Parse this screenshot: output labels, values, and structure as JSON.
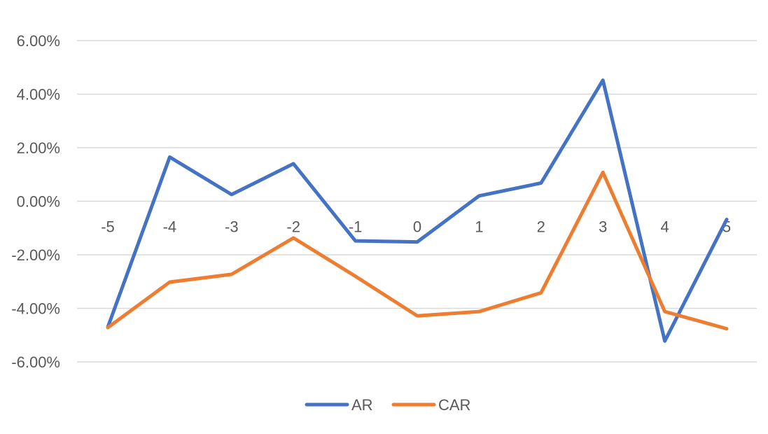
{
  "chart_data": {
    "type": "line",
    "categories": [
      "-5",
      "-4",
      "-3",
      "-2",
      "-1",
      "0",
      "1",
      "2",
      "3",
      "4",
      "5"
    ],
    "series": [
      {
        "name": "AR",
        "color": "#4472C4",
        "values": [
          -4.7,
          1.65,
          0.25,
          1.4,
          -1.48,
          -1.52,
          0.2,
          0.68,
          4.52,
          -5.22,
          -0.68
        ]
      },
      {
        "name": "CAR",
        "color": "#ED7D31",
        "values": [
          -4.72,
          -3.02,
          -2.73,
          -1.37,
          -2.8,
          -4.28,
          -4.12,
          -3.42,
          1.08,
          -4.12,
          -4.76
        ]
      }
    ],
    "ylim": [
      -6,
      6
    ],
    "yticks": [
      -6,
      -4,
      -2,
      0,
      2,
      4,
      6
    ],
    "ytick_labels": [
      "-6.00%",
      "-4.00%",
      "-2.00%",
      "0.00%",
      "2.00%",
      "4.00%",
      "6.00%"
    ],
    "grid": true,
    "legend_position": "bottom",
    "title": "",
    "xlabel": "",
    "ylabel": ""
  }
}
